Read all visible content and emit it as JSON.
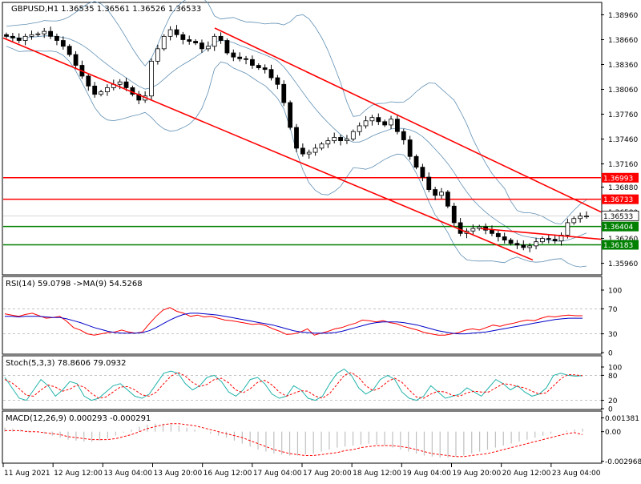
{
  "chart_data": [
    {
      "type": "candlestick",
      "title": "GBPUSD,H1  1.36535 1.36561 1.36526 1.36533",
      "ylim": [
        1.3583,
        1.391
      ],
      "y_ticks": [
        "1.38960",
        "1.38660",
        "1.38360",
        "1.38060",
        "1.37760",
        "1.37460",
        "1.37160",
        "1.36880",
        "1.36580",
        "1.36260",
        "1.35960"
      ],
      "current_price": "1.36533",
      "levels": [
        {
          "label": "1.36993",
          "value": 1.36993,
          "color": "#ff0000"
        },
        {
          "label": "1.36733",
          "value": 1.36733,
          "color": "#ff0000"
        },
        {
          "label": "1.36404",
          "value": 1.36404,
          "color": "#008000"
        },
        {
          "label": "1.36183",
          "value": 1.36183,
          "color": "#008000"
        }
      ],
      "close_series": [
        1.387,
        1.3868,
        1.3865,
        1.387,
        1.3872,
        1.3873,
        1.3876,
        1.387,
        1.3865,
        1.3858,
        1.3848,
        1.3835,
        1.3822,
        1.381,
        1.38,
        1.3803,
        1.3808,
        1.3812,
        1.3815,
        1.3808,
        1.38,
        1.3793,
        1.3798,
        1.384,
        1.3855,
        1.387,
        1.3878,
        1.3872,
        1.3866,
        1.3864,
        1.3862,
        1.3855,
        1.3858,
        1.387,
        1.3865,
        1.385,
        1.3845,
        1.3843,
        1.3842,
        1.3835,
        1.3832,
        1.383,
        1.382,
        1.3812,
        1.379,
        1.376,
        1.3735,
        1.3728,
        1.373,
        1.3735,
        1.374,
        1.3744,
        1.3748,
        1.3744,
        1.3746,
        1.3755,
        1.3762,
        1.3768,
        1.3772,
        1.3767,
        1.3763,
        1.377,
        1.3755,
        1.3745,
        1.3725,
        1.3712,
        1.37,
        1.3685,
        1.3678,
        1.3682,
        1.3665,
        1.3645,
        1.3632,
        1.3635,
        1.3638,
        1.364,
        1.3636,
        1.3632,
        1.3628,
        1.3624,
        1.362,
        1.3618,
        1.3615,
        1.3617,
        1.3622,
        1.3626,
        1.3625,
        1.3623,
        1.363,
        1.3645,
        1.365,
        1.3653,
        1.3653
      ],
      "channel": {
        "upper": [
          [
            1.388,
            1.3658
          ]
        ],
        "lower": [
          [
            1.3868,
            1.36
          ]
        ],
        "mid": [
          [
            1.3638,
            1.3625
          ]
        ]
      },
      "line_colors": {
        "candles": "#000000",
        "bands": "#5f8fb4",
        "channel": "#ff0000",
        "support": "#008000"
      }
    },
    {
      "type": "line",
      "title": "RSI(14) 59.0798  ->MA(9) 54.5268",
      "ylim": [
        0,
        100
      ],
      "y_ticks": [
        "100",
        "70",
        "30",
        "0"
      ],
      "series": [
        {
          "name": "RSI(14)",
          "color": "#ff0000",
          "values": [
            62,
            60,
            58,
            61,
            63,
            59,
            55,
            56,
            58,
            50,
            40,
            36,
            30,
            28,
            30,
            32,
            33,
            36,
            33,
            31,
            33,
            46,
            58,
            68,
            72,
            66,
            63,
            58,
            60,
            57,
            58,
            55,
            52,
            51,
            49,
            47,
            45,
            46,
            43,
            38,
            34,
            29,
            30,
            33,
            38,
            28,
            31,
            34,
            38,
            40,
            44,
            47,
            52,
            51,
            49,
            51,
            48,
            46,
            42,
            39,
            36,
            32,
            30,
            28,
            28,
            30,
            32,
            36,
            38,
            36,
            40,
            44,
            42,
            45,
            47,
            50,
            52,
            51,
            55,
            58,
            57,
            59,
            60,
            59,
            59
          ]
        },
        {
          "name": "MA(9)",
          "color": "#0000c8",
          "values": [
            58,
            58,
            57,
            58,
            58,
            58,
            57,
            56,
            56,
            54,
            51,
            48,
            44,
            40,
            37,
            34,
            32,
            31,
            31,
            31,
            32,
            35,
            40,
            46,
            52,
            57,
            61,
            63,
            63,
            62,
            61,
            60,
            58,
            56,
            54,
            52,
            50,
            48,
            46,
            44,
            41,
            38,
            35,
            33,
            32,
            31,
            31,
            31,
            32,
            34,
            37,
            40,
            43,
            46,
            48,
            49,
            49,
            49,
            48,
            46,
            44,
            41,
            38,
            35,
            33,
            31,
            30,
            30,
            31,
            32,
            33,
            35,
            37,
            39,
            41,
            43,
            45,
            47,
            49,
            51,
            53,
            54,
            55,
            55,
            55
          ]
        }
      ]
    },
    {
      "type": "line",
      "title": "Stoch(5,3,3) 78.8606 79.0932",
      "ylim": [
        0,
        100
      ],
      "y_ticks": [
        "100",
        "80",
        "20",
        "0"
      ],
      "series": [
        {
          "name": "Stoch %K",
          "color": "#20b2aa",
          "values": [
            75,
            50,
            25,
            20,
            45,
            70,
            55,
            30,
            45,
            65,
            60,
            30,
            20,
            25,
            40,
            55,
            60,
            45,
            30,
            25,
            35,
            60,
            85,
            90,
            85,
            60,
            45,
            55,
            75,
            80,
            65,
            40,
            30,
            45,
            70,
            75,
            60,
            35,
            25,
            30,
            55,
            45,
            25,
            20,
            30,
            60,
            85,
            95,
            80,
            50,
            35,
            45,
            70,
            80,
            70,
            40,
            25,
            20,
            30,
            55,
            40,
            25,
            30,
            35,
            50,
            40,
            30,
            50,
            70,
            60,
            45,
            55,
            40,
            30,
            35,
            50,
            80,
            85,
            80,
            78,
            79
          ]
        },
        {
          "name": "Stoch %D",
          "color": "#ff0000",
          "values": [
            70,
            62,
            48,
            32,
            30,
            45,
            57,
            52,
            42,
            47,
            57,
            52,
            37,
            25,
            28,
            40,
            52,
            53,
            45,
            33,
            30,
            40,
            60,
            78,
            87,
            78,
            63,
            53,
            58,
            70,
            73,
            62,
            45,
            38,
            48,
            63,
            68,
            57,
            40,
            30,
            37,
            43,
            42,
            30,
            25,
            37,
            58,
            80,
            87,
            75,
            55,
            43,
            50,
            65,
            73,
            63,
            45,
            28,
            25,
            35,
            42,
            40,
            32,
            30,
            38,
            42,
            40,
            40,
            50,
            60,
            58,
            53,
            50,
            42,
            35,
            38,
            55,
            72,
            82,
            81,
            79
          ]
        }
      ]
    },
    {
      "type": "bar",
      "title": "MACD(12,26,9) 0.000293 -0.000291",
      "ylim": [
        -0.003,
        0.0015
      ],
      "y_ticks": [
        "0.001381",
        "0.00",
        "-0.002968"
      ],
      "series": [
        {
          "name": "MACD",
          "color": "#c0c0c0",
          "values": [
            0.0004,
            0.0003,
            0.0002,
            0.0001,
            0.0,
            -0.0002,
            -0.0004,
            -0.0006,
            -0.0008,
            -0.0009,
            -0.001,
            -0.001,
            -0.0009,
            -0.0007,
            -0.0004,
            -0.0001,
            0.0002,
            0.0005,
            0.0007,
            0.0008,
            0.0008,
            0.0007,
            0.0006,
            0.0004,
            0.0002,
            0.0,
            -0.0002,
            -0.0004,
            -0.0006,
            -0.0009,
            -0.0012,
            -0.0015,
            -0.0018,
            -0.002,
            -0.0022,
            -0.0023,
            -0.0024,
            -0.0024,
            -0.0023,
            -0.0022,
            -0.002,
            -0.0018,
            -0.0016,
            -0.0015,
            -0.0014,
            -0.0013,
            -0.0012,
            -0.0013,
            -0.0014,
            -0.0016,
            -0.0018,
            -0.002,
            -0.0022,
            -0.0024,
            -0.0025,
            -0.0026,
            -0.0026,
            -0.0025,
            -0.0024,
            -0.0022,
            -0.002,
            -0.0018,
            -0.0016,
            -0.0014,
            -0.0012,
            -0.001,
            -0.0008,
            -0.0006,
            -0.0004,
            -0.0002,
            0.0,
            0.0001,
            0.0002,
            0.0003
          ]
        },
        {
          "name": "Signal",
          "color": "#ff0000",
          "values": [
            0.0001,
            0.0001,
            0.0001,
            0.0,
            0.0,
            -0.0001,
            -0.0002,
            -0.0003,
            -0.0005,
            -0.0006,
            -0.0007,
            -0.0008,
            -0.0008,
            -0.0008,
            -0.0007,
            -0.0005,
            -0.0003,
            0.0,
            0.0003,
            0.0005,
            0.0007,
            0.0008,
            0.0008,
            0.0007,
            0.0006,
            0.0004,
            0.0002,
            0.0,
            -0.0002,
            -0.0004,
            -0.0006,
            -0.0009,
            -0.0012,
            -0.0015,
            -0.0018,
            -0.002,
            -0.0022,
            -0.0023,
            -0.0024,
            -0.0024,
            -0.0023,
            -0.0022,
            -0.0021,
            -0.0019,
            -0.0018,
            -0.0016,
            -0.0015,
            -0.0014,
            -0.0014,
            -0.0014,
            -0.0015,
            -0.0016,
            -0.0018,
            -0.002,
            -0.0022,
            -0.0023,
            -0.0024,
            -0.0025,
            -0.0025,
            -0.0024,
            -0.0023,
            -0.0022,
            -0.002,
            -0.0018,
            -0.0016,
            -0.0014,
            -0.0012,
            -0.001,
            -0.0008,
            -0.0006,
            -0.0004,
            -0.0002,
            -0.0001,
            -0.0003
          ]
        }
      ]
    }
  ],
  "x_axis_labels": [
    "11 Aug 2021",
    "12 Aug 12:00",
    "13 Aug 04:00",
    "13 Aug 20:00",
    "16 Aug 12:00",
    "17 Aug 04:00",
    "17 Aug 20:00",
    "18 Aug 12:00",
    "19 Aug 04:00",
    "19 Aug 20:00",
    "20 Aug 12:00",
    "23 Aug 04:00"
  ]
}
